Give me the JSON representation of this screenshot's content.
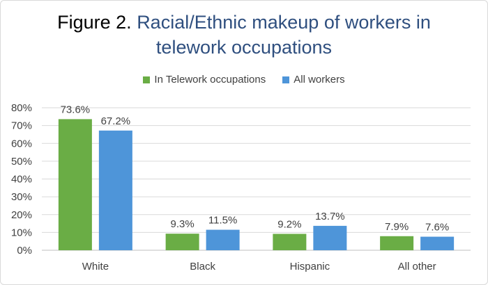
{
  "chart_data": {
    "type": "bar",
    "title_prefix": "Figure 2.",
    "title_rest": "Racial/Ethnic makeup of workers in",
    "title_line2": "telework occupations",
    "categories": [
      "White",
      "Black",
      "Hispanic",
      "All other"
    ],
    "series": [
      {
        "name": "In Telework occupations",
        "color": "#6aad45",
        "values": [
          73.6,
          9.3,
          9.2,
          7.9
        ],
        "labels": [
          "73.6%",
          "9.3%",
          "9.2%",
          "7.9%"
        ]
      },
      {
        "name": "All workers",
        "color": "#4e95d9",
        "values": [
          67.2,
          11.5,
          13.7,
          7.6
        ],
        "labels": [
          "67.2%",
          "11.5%",
          "13.7%",
          "7.6%"
        ]
      }
    ],
    "yticks": [
      "0%",
      "10%",
      "20%",
      "30%",
      "40%",
      "50%",
      "60%",
      "70%",
      "80%"
    ],
    "ylim": [
      0,
      80
    ],
    "legend_position": "top-center",
    "grid": true
  }
}
